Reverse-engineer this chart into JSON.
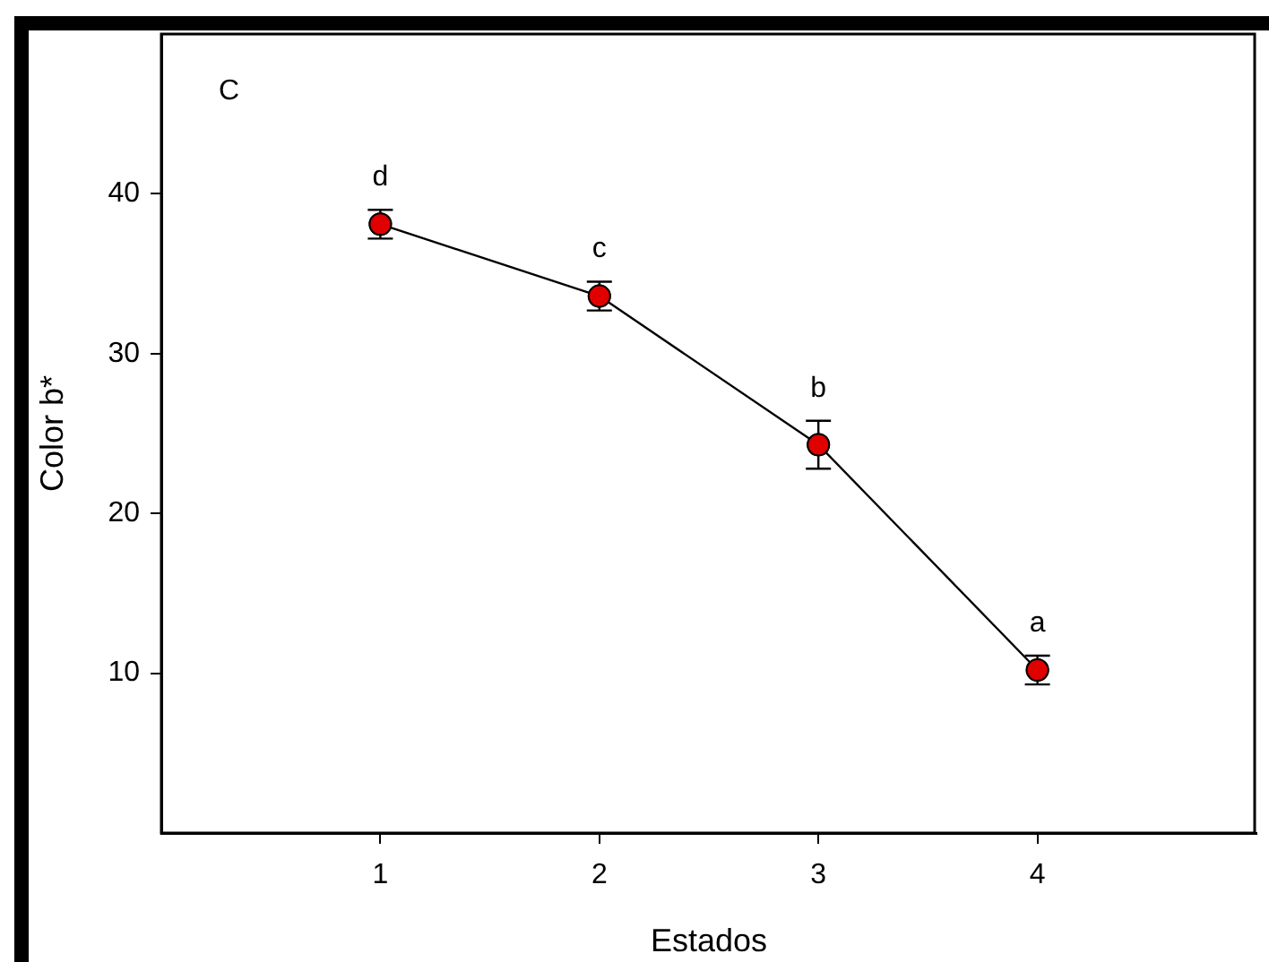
{
  "chart_data": {
    "type": "line",
    "xlabel": "Estados",
    "ylabel": "Color b*",
    "x": [
      1,
      2,
      3,
      4
    ],
    "series": [
      {
        "color": "#e00000",
        "values": [
          38.1,
          33.6,
          24.3,
          10.2
        ],
        "errors": [
          0.9,
          0.9,
          1.5,
          0.9
        ]
      }
    ],
    "xlim": [
      0,
      5
    ],
    "xticks": [
      1,
      2,
      3,
      4
    ],
    "ylim": [
      0,
      50
    ],
    "yticks": [
      10,
      20,
      30,
      40
    ],
    "grid": false,
    "legend": false,
    "marker": "circle",
    "line_style": "solid",
    "annotations": [
      "C",
      {
        "text": "d",
        "x": 1,
        "y": 38.1
      },
      {
        "text": "c",
        "x": 2,
        "y": 33.6
      },
      {
        "text": "b",
        "x": 3,
        "y": 24.3
      },
      {
        "text": "a",
        "x": 4,
        "y": 10.2
      }
    ]
  }
}
